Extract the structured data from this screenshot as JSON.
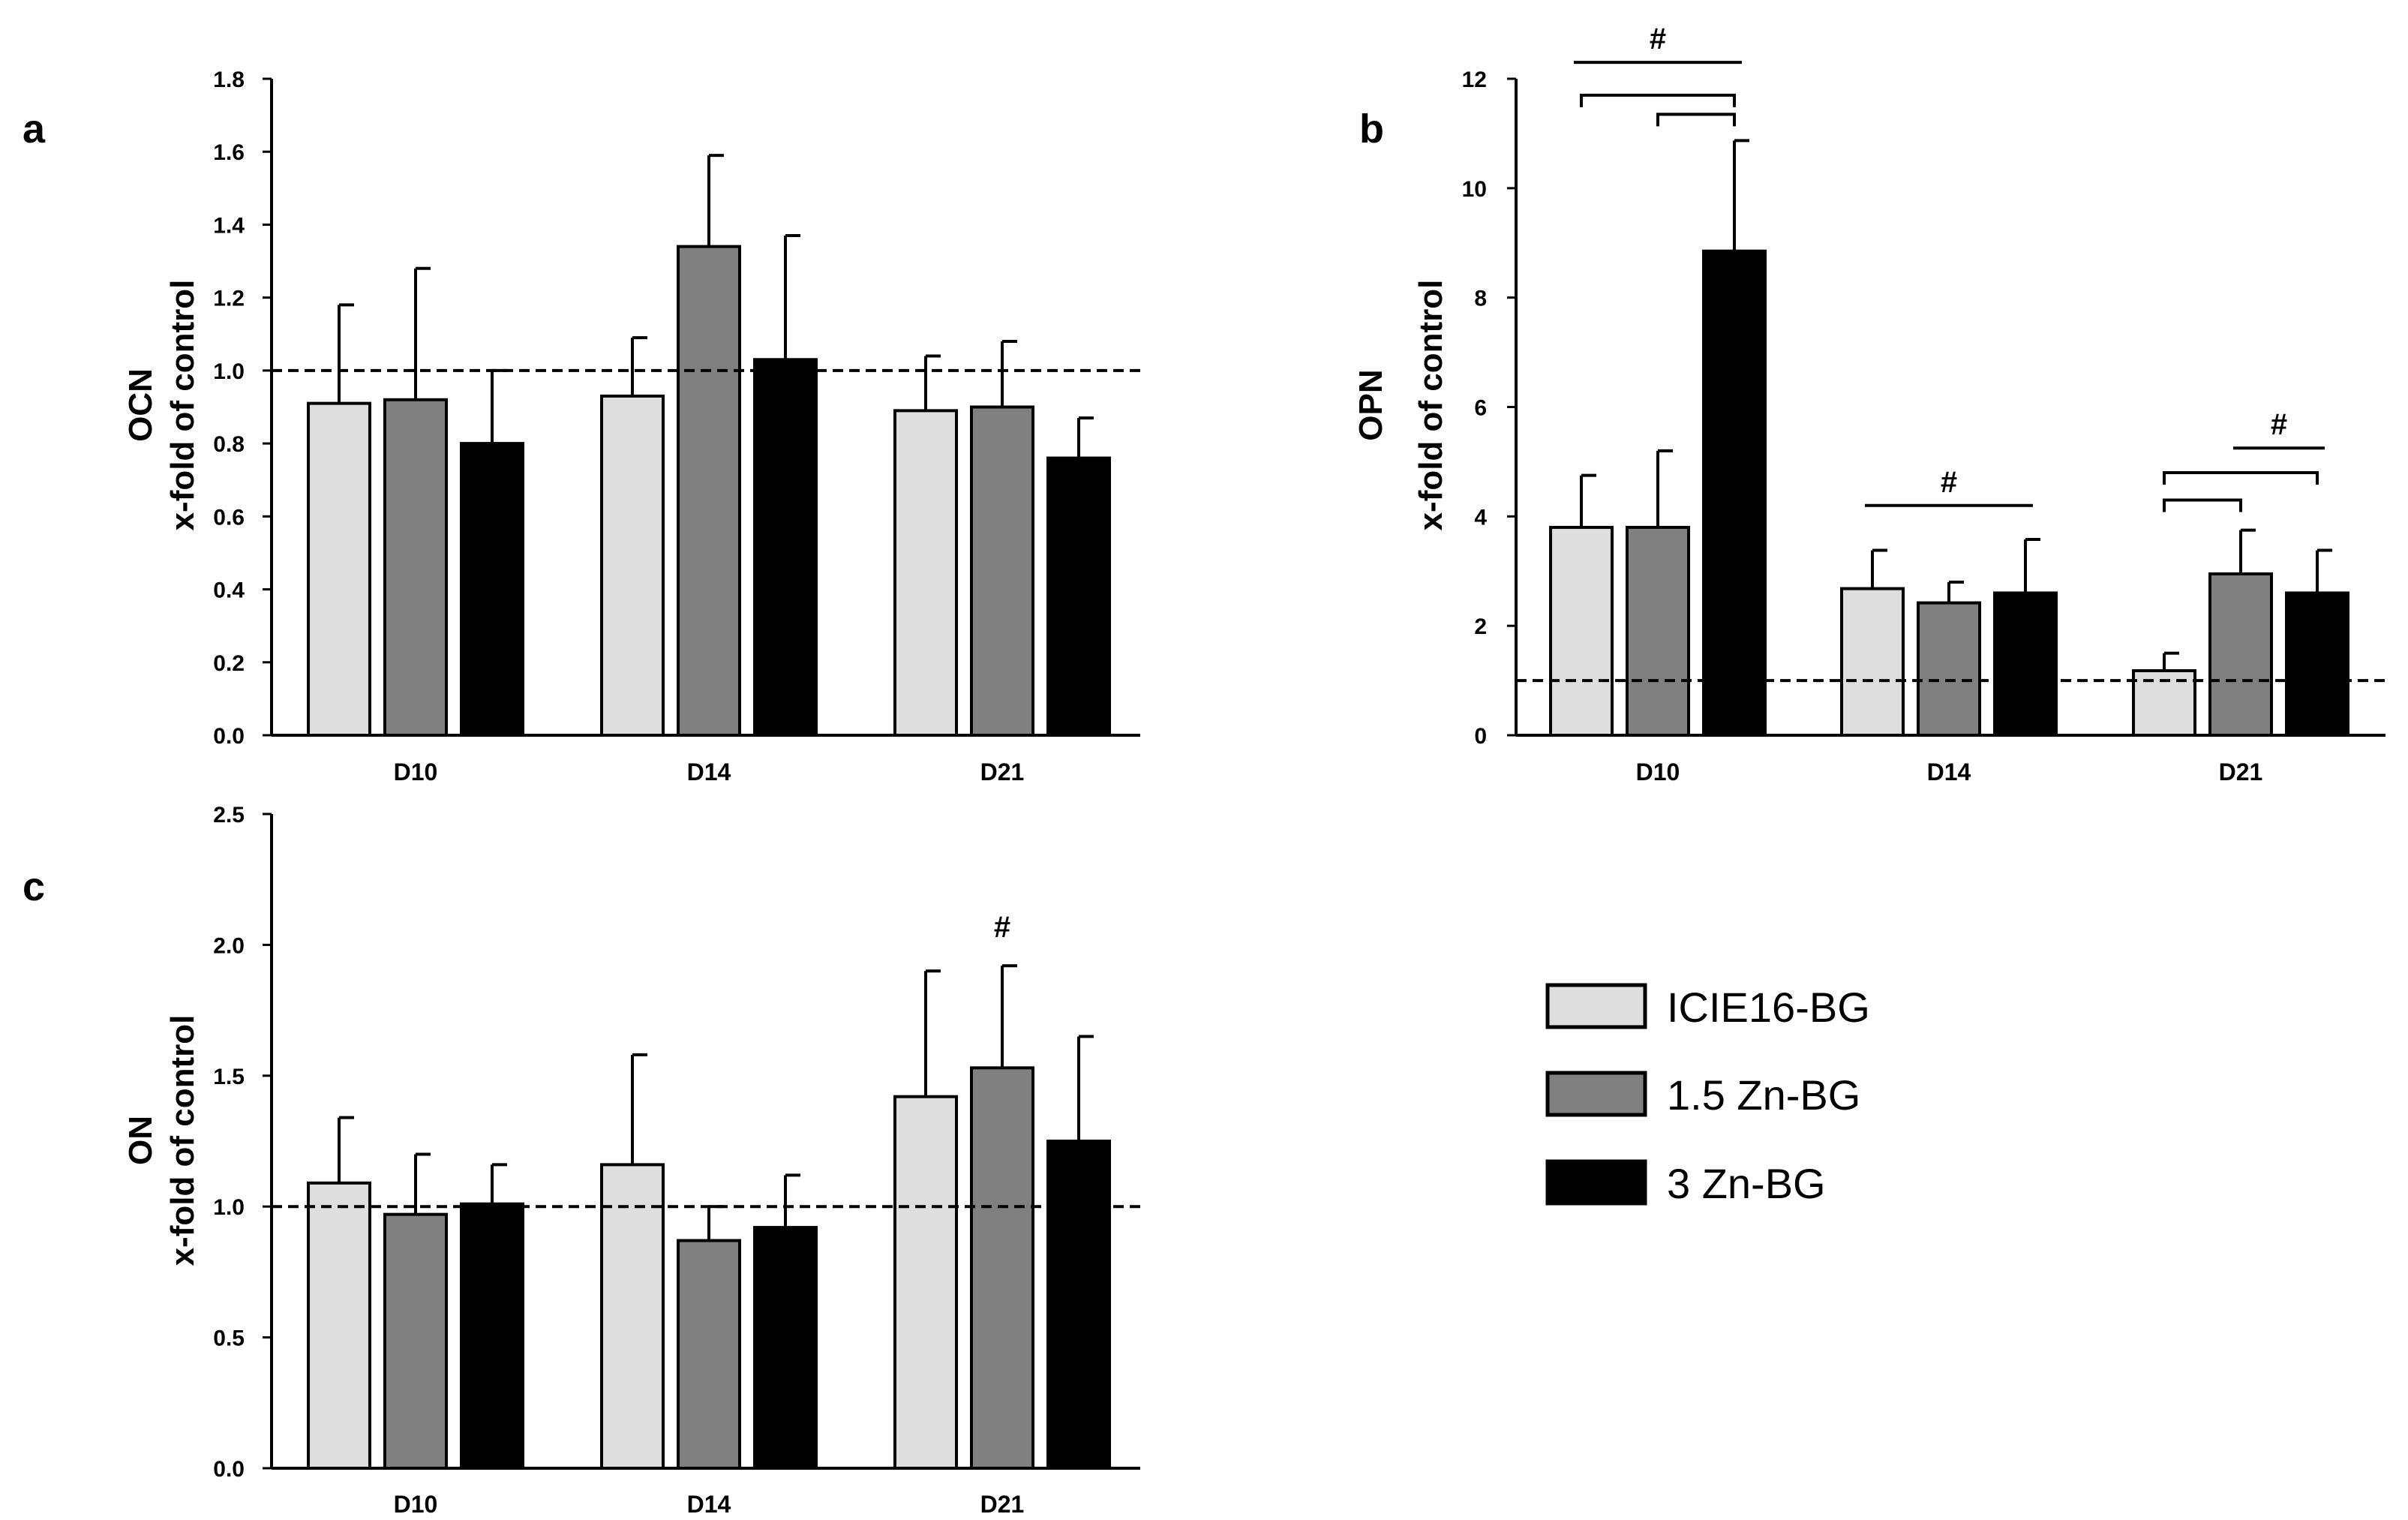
{
  "series_styles": [
    {
      "name": "ICIE16-BG",
      "color": "#dedede"
    },
    {
      "name": "1.5 Zn-BG",
      "color": "#808080"
    },
    {
      "name": "3 Zn-BG",
      "color": "#000000"
    }
  ],
  "legend": {
    "items": [
      "ICIE16-BG",
      "1.5 Zn-BG",
      "3 Zn-BG"
    ]
  },
  "chart_data": [
    {
      "panel": "a",
      "type": "bar",
      "ylabel_line1": "OCN",
      "ylabel_line2": "x-fold of control",
      "categories": [
        "D10",
        "D14",
        "D21"
      ],
      "ylim": [
        0,
        1.8
      ],
      "yticks": [
        "0.0",
        "0.2",
        "0.4",
        "0.6",
        "0.8",
        "1.0",
        "1.2",
        "1.4",
        "1.6",
        "1.8"
      ],
      "reference_line": 1.0,
      "series": [
        {
          "name": "ICIE16-BG",
          "values": [
            0.91,
            0.93,
            0.89
          ],
          "errors": [
            0.27,
            0.16,
            0.15
          ]
        },
        {
          "name": "1.5 Zn-BG",
          "values": [
            0.92,
            1.34,
            0.9
          ],
          "errors": [
            0.36,
            0.25,
            0.18
          ]
        },
        {
          "name": "3 Zn-BG",
          "values": [
            0.8,
            1.03,
            0.76
          ],
          "errors": [
            0.2,
            0.34,
            0.11
          ]
        }
      ],
      "annotations": []
    },
    {
      "panel": "b",
      "type": "bar",
      "ylabel_line1": "OPN",
      "ylabel_line2": "x-fold of control",
      "categories": [
        "D10",
        "D14",
        "D21"
      ],
      "ylim": [
        0,
        12
      ],
      "yticks": [
        "0",
        "2",
        "4",
        "6",
        "8",
        "10",
        "12"
      ],
      "reference_line": 1.0,
      "series": [
        {
          "name": "ICIE16-BG",
          "values": [
            3.8,
            2.68,
            1.18
          ],
          "errors": [
            0.95,
            0.7,
            0.32
          ]
        },
        {
          "name": "1.5 Zn-BG",
          "values": [
            3.8,
            2.42,
            2.95
          ],
          "errors": [
            1.4,
            0.38,
            0.8
          ]
        },
        {
          "name": "3 Zn-BG",
          "values": [
            8.85,
            2.6,
            2.6
          ],
          "errors": [
            2.02,
            0.98,
            0.78
          ]
        }
      ],
      "annotations": [
        {
          "text": "#",
          "type": "line",
          "from_group": 0,
          "from_series": 0,
          "to_group": 0,
          "to_series": 2,
          "y": 12.3
        },
        {
          "text": "",
          "type": "bracket",
          "from_group": 0,
          "from_series": 0,
          "to_group": 0,
          "to_series": 2,
          "y": 11.7
        },
        {
          "text": "",
          "type": "bracket",
          "from_group": 0,
          "from_series": 1,
          "to_group": 0,
          "to_series": 2,
          "y": 11.35
        },
        {
          "text": "#",
          "type": "line",
          "from_group": 1,
          "from_series": 0,
          "to_group": 1,
          "to_series": 2,
          "y": 4.2
        },
        {
          "text": "",
          "type": "bracket",
          "from_group": 2,
          "from_series": 0,
          "to_group": 2,
          "to_series": 2,
          "y": 4.8
        },
        {
          "text": "",
          "type": "bracket",
          "from_group": 2,
          "from_series": 0,
          "to_group": 2,
          "to_series": 1,
          "y": 4.3
        },
        {
          "text": "#",
          "type": "line",
          "from_group": 2,
          "from_series": 1,
          "to_group": 2,
          "to_series": 2,
          "y": 5.25
        }
      ]
    },
    {
      "panel": "c",
      "type": "bar",
      "ylabel_line1": "ON",
      "ylabel_line2": "x-fold of control",
      "categories": [
        "D10",
        "D14",
        "D21"
      ],
      "ylim": [
        0,
        2.5
      ],
      "yticks": [
        "0.0",
        "0.5",
        "1.0",
        "1.5",
        "2.0",
        "2.5"
      ],
      "reference_line": 1.0,
      "series": [
        {
          "name": "ICIE16-BG",
          "values": [
            1.09,
            1.16,
            1.42
          ],
          "errors": [
            0.25,
            0.42,
            0.48
          ]
        },
        {
          "name": "1.5 Zn-BG",
          "values": [
            0.97,
            0.87,
            1.53
          ],
          "errors": [
            0.23,
            0.13,
            0.39
          ]
        },
        {
          "name": "3 Zn-BG",
          "values": [
            1.01,
            0.92,
            1.25
          ],
          "errors": [
            0.15,
            0.2,
            0.4
          ]
        }
      ],
      "annotations": [
        {
          "text": "#",
          "type": "label",
          "group": 2,
          "series": 1,
          "y": 2.03
        }
      ]
    }
  ]
}
